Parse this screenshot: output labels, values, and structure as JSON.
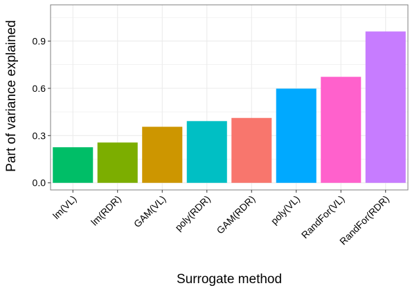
{
  "chart_data": {
    "type": "bar",
    "title": "",
    "xlabel": "Surrogate method",
    "ylabel": "Part of variance explained",
    "categories": [
      "lm(VL)",
      "lm(RDR)",
      "GAM(VL)",
      "poly(RDR)",
      "GAM(RDR)",
      "poly(VL)",
      "RandFor(VL)",
      "RandFor(RDR)"
    ],
    "values": [
      0.226,
      0.256,
      0.356,
      0.392,
      0.412,
      0.598,
      0.673,
      0.961
    ],
    "colors": [
      "#00BE67",
      "#7CAE00",
      "#CD9600",
      "#00BFC4",
      "#F8766D",
      "#00A9FF",
      "#FF61CC",
      "#C77CFF"
    ],
    "yticks": [
      0.0,
      0.3,
      0.6,
      0.9
    ],
    "ytick_labels": [
      "0.0",
      "0.3",
      "0.6",
      "0.9"
    ],
    "ylim": [
      -0.045,
      1.13
    ],
    "grid": true,
    "legend": "none",
    "panel_border_color": "#7f7f7f",
    "grid_color": "#ebebeb"
  }
}
